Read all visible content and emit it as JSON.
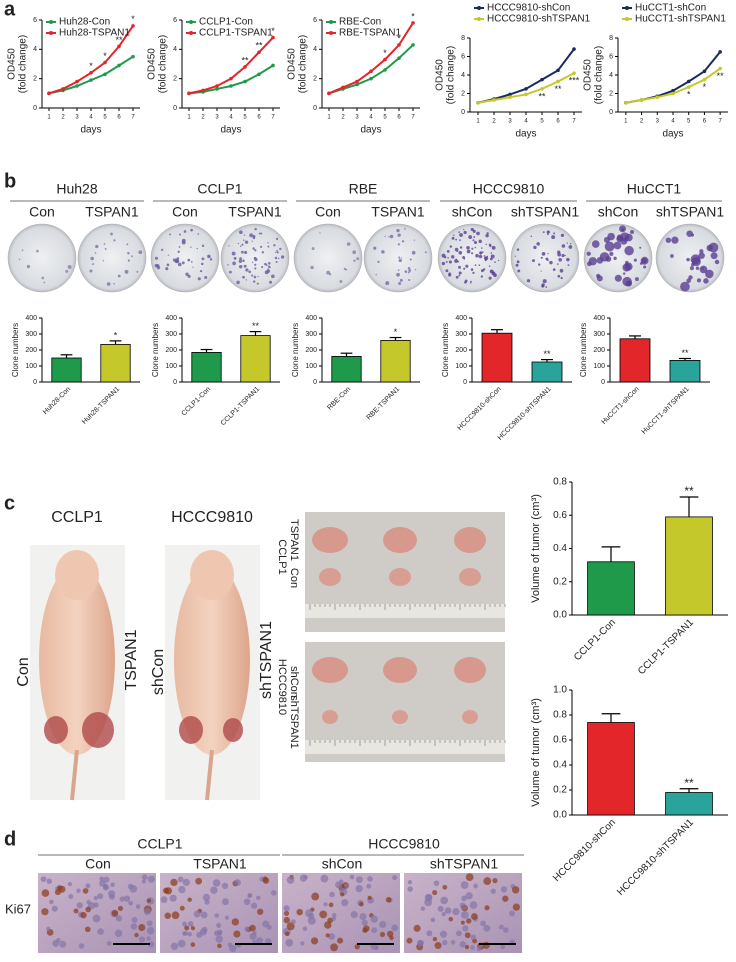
{
  "panels": [
    "a",
    "b",
    "c",
    "d"
  ],
  "colony_headers": [
    {
      "group": "Huh28",
      "subgroups": [
        "Con",
        "TSPAN1"
      ]
    },
    {
      "group": "CCLP1",
      "subgroups": [
        "Con",
        "TSPAN1"
      ]
    },
    {
      "group": "RBE",
      "subgroups": [
        "Con",
        "TSPAN1"
      ]
    },
    {
      "group": "HCCC9810",
      "subgroups": [
        "shCon",
        "shTSPAN1"
      ]
    },
    {
      "group": "HuCCT1",
      "subgroups": [
        "shCon",
        "shTSPAN1"
      ]
    }
  ],
  "mouse_photos": [
    {
      "title": "CCLP1",
      "left": "Con",
      "right": "TSPAN1"
    },
    {
      "title": "HCCC9810",
      "left": "shCon",
      "right": "shTSPAN1"
    }
  ],
  "tumor_photos": [
    {
      "cell": "CCLP1",
      "rows": [
        "TSPAN1",
        "Con"
      ]
    },
    {
      "cell": "HCCC9810",
      "rows": [
        "shCon",
        "shTSPAN1"
      ]
    }
  ],
  "ihc": {
    "stain": "Ki67",
    "groups": [
      {
        "group": "CCLP1",
        "subgroups": [
          "Con",
          "TSPAN1"
        ]
      },
      {
        "group": "HCCC9810",
        "subgroups": [
          "shCon",
          "shTSPAN1"
        ]
      }
    ]
  },
  "chart_data": [
    {
      "type": "line",
      "xlabel": "days",
      "ylabel": [
        "OD450",
        "(fold change)"
      ],
      "legend": "upper left",
      "significance_side": "above",
      "x": [
        1,
        2,
        3,
        4,
        5,
        6,
        7
      ],
      "xlim": [
        0.5,
        7.5
      ],
      "xticks": [
        1,
        2,
        3,
        4,
        5,
        6,
        7
      ],
      "ylim": [
        0,
        6
      ],
      "yticks": [
        0,
        2,
        4,
        6
      ],
      "series": [
        {
          "name": "Huh28-Con",
          "color": "#1f9a4b",
          "values": [
            1,
            1.2,
            1.5,
            1.9,
            2.3,
            2.9,
            3.5
          ]
        },
        {
          "name": "Huh28-TSPAN1",
          "color": "#e3262a",
          "values": [
            1,
            1.3,
            1.8,
            2.4,
            3.1,
            4.2,
            5.6
          ]
        }
      ],
      "significance": [
        null,
        null,
        null,
        "*",
        "*",
        "**",
        "*"
      ]
    },
    {
      "type": "line",
      "xlabel": "days",
      "ylabel": [
        "OD450",
        "(fold change)"
      ],
      "legend": "upper left",
      "significance_side": "above",
      "x": [
        1,
        2,
        3,
        4,
        5,
        6,
        7
      ],
      "xlim": [
        0.5,
        7.5
      ],
      "xticks": [
        1,
        2,
        3,
        4,
        5,
        6,
        7
      ],
      "ylim": [
        0,
        6
      ],
      "yticks": [
        0,
        2,
        4,
        6
      ],
      "series": [
        {
          "name": "CCLP1-Con",
          "color": "#1f9a4b",
          "values": [
            1,
            1.1,
            1.3,
            1.5,
            1.8,
            2.3,
            2.9
          ]
        },
        {
          "name": "CCLP1-TSPAN1",
          "color": "#e3262a",
          "values": [
            1,
            1.2,
            1.5,
            2,
            2.8,
            3.8,
            4.8
          ]
        }
      ],
      "significance": [
        null,
        null,
        null,
        null,
        "**",
        "**",
        "*"
      ]
    },
    {
      "type": "line",
      "xlabel": "days",
      "ylabel": [
        "OD450",
        "(fold change)"
      ],
      "legend": "upper left",
      "significance_side": "above",
      "x": [
        1,
        2,
        3,
        4,
        5,
        6,
        7
      ],
      "xlim": [
        0.5,
        7.5
      ],
      "xticks": [
        1,
        2,
        3,
        4,
        5,
        6,
        7
      ],
      "ylim": [
        0,
        6
      ],
      "yticks": [
        0,
        2,
        4,
        6
      ],
      "series": [
        {
          "name": "RBE-Con",
          "color": "#1f9a4b",
          "values": [
            1,
            1.3,
            1.6,
            2,
            2.6,
            3.4,
            4.3
          ]
        },
        {
          "name": "RBE-TSPAN1",
          "color": "#e3262a",
          "values": [
            1,
            1.4,
            1.8,
            2.5,
            3.3,
            4.3,
            5.8
          ]
        }
      ],
      "significance": [
        null,
        null,
        null,
        null,
        "*",
        "*",
        "*"
      ]
    },
    {
      "type": "line",
      "xlabel": "days",
      "ylabel": [
        "OD450",
        "(fold change)"
      ],
      "legend": "top",
      "significance_side": "below",
      "x": [
        1,
        2,
        3,
        4,
        5,
        6,
        7
      ],
      "xlim": [
        0.5,
        7.5
      ],
      "xticks": [
        1,
        2,
        3,
        4,
        5,
        6,
        7
      ],
      "ylim": [
        0,
        8
      ],
      "yticks": [
        0,
        2,
        4,
        6,
        8
      ],
      "series": [
        {
          "name": "HCCC9810-shCon",
          "color": "#1b2a5e",
          "values": [
            1,
            1.4,
            1.9,
            2.5,
            3.5,
            4.5,
            6.8
          ]
        },
        {
          "name": "HCCC9810-shTSPAN1",
          "color": "#c5c82a",
          "values": [
            1,
            1.3,
            1.6,
            1.9,
            2.5,
            3.3,
            4.2
          ]
        }
      ],
      "significance": [
        null,
        null,
        null,
        null,
        "**",
        "**",
        "***"
      ]
    },
    {
      "type": "line",
      "xlabel": "days",
      "ylabel": [
        "OD450",
        "(fold change)"
      ],
      "legend": "top",
      "significance_side": "below",
      "x": [
        1,
        2,
        3,
        4,
        5,
        6,
        7
      ],
      "xlim": [
        0.5,
        7.5
      ],
      "xticks": [
        1,
        2,
        3,
        4,
        5,
        6,
        7
      ],
      "ylim": [
        0,
        8
      ],
      "yticks": [
        0,
        2,
        4,
        6,
        8
      ],
      "series": [
        {
          "name": "HuCCT1-shCon",
          "color": "#1b2a5e",
          "values": [
            1,
            1.3,
            1.7,
            2.3,
            3.3,
            4.4,
            6.5
          ]
        },
        {
          "name": "HuCCT1-shTSPAN1",
          "color": "#c5c82a",
          "values": [
            1,
            1.3,
            1.6,
            2,
            2.7,
            3.5,
            4.7
          ]
        }
      ],
      "significance": [
        null,
        null,
        null,
        null,
        "*",
        "*",
        "**"
      ]
    },
    {
      "type": "bar",
      "ylabel": "Clone numbers",
      "categories": [
        "Huh28-Con",
        "Huh28-TSPAN1"
      ],
      "values": [
        150,
        235
      ],
      "errors": [
        20,
        22
      ],
      "colors": [
        "#1f9a4b",
        "#c5c82a"
      ],
      "significance": [
        null,
        "*"
      ],
      "ylim": [
        0,
        400
      ],
      "yticks": [
        0,
        100,
        200,
        300,
        400
      ]
    },
    {
      "type": "bar",
      "ylabel": "Clone numbers",
      "categories": [
        "CCLP1-Con",
        "CCLP1-TSPAN1"
      ],
      "values": [
        185,
        290
      ],
      "errors": [
        18,
        25
      ],
      "colors": [
        "#1f9a4b",
        "#c5c82a"
      ],
      "significance": [
        null,
        "**"
      ],
      "ylim": [
        0,
        400
      ],
      "yticks": [
        0,
        100,
        200,
        300,
        400
      ]
    },
    {
      "type": "bar",
      "ylabel": "Clone numbers",
      "categories": [
        "RBE-Con",
        "RBE-TSPAN1"
      ],
      "values": [
        160,
        260
      ],
      "errors": [
        20,
        18
      ],
      "colors": [
        "#1f9a4b",
        "#c5c82a"
      ],
      "significance": [
        null,
        "*"
      ],
      "ylim": [
        0,
        400
      ],
      "yticks": [
        0,
        100,
        200,
        300,
        400
      ]
    },
    {
      "type": "bar",
      "ylabel": "Clone numbers",
      "categories": [
        "HCCC9810-shCon",
        "HCCC9810-shTSPAN1"
      ],
      "values": [
        305,
        125
      ],
      "errors": [
        22,
        15
      ],
      "colors": [
        "#e3262a",
        "#2aa39a"
      ],
      "significance": [
        null,
        "**"
      ],
      "ylim": [
        0,
        400
      ],
      "yticks": [
        0,
        100,
        200,
        300,
        400
      ]
    },
    {
      "type": "bar",
      "ylabel": "Clone numbers",
      "categories": [
        "HuCCT1-shCon",
        "HuCCT1-shTSPAN1"
      ],
      "values": [
        270,
        135
      ],
      "errors": [
        18,
        12
      ],
      "colors": [
        "#e3262a",
        "#2aa39a"
      ],
      "significance": [
        null,
        "**"
      ],
      "ylim": [
        0,
        400
      ],
      "yticks": [
        0,
        100,
        200,
        300,
        400
      ]
    },
    {
      "type": "bar",
      "ylabel": "Volume of tumor (cm³)",
      "categories": [
        "CCLP1-Con",
        "CCLP1-TSPAN1"
      ],
      "values": [
        0.32,
        0.59
      ],
      "errors": [
        0.09,
        0.12
      ],
      "colors": [
        "#1f9a4b",
        "#c5c82a"
      ],
      "significance": [
        null,
        "**"
      ],
      "ylim": [
        0,
        0.8
      ],
      "yticks": [
        {
          "value": 0,
          "label": "0.0"
        },
        0.2,
        0.4,
        0.6,
        0.8
      ]
    },
    {
      "type": "bar",
      "ylabel": "Volume of tumor (cm³)",
      "categories": [
        "HCCC9810-shCon",
        "HCCC9810-shTSPAN1"
      ],
      "values": [
        0.74,
        0.18
      ],
      "errors": [
        0.07,
        0.03
      ],
      "colors": [
        "#e3262a",
        "#2aa39a"
      ],
      "significance": [
        null,
        "**"
      ],
      "ylim": [
        0,
        1
      ],
      "yticks": [
        {
          "value": 0,
          "label": "0.0"
        },
        0.2,
        0.4,
        0.6,
        0.8,
        {
          "value": 1,
          "label": "1.0"
        }
      ]
    }
  ]
}
